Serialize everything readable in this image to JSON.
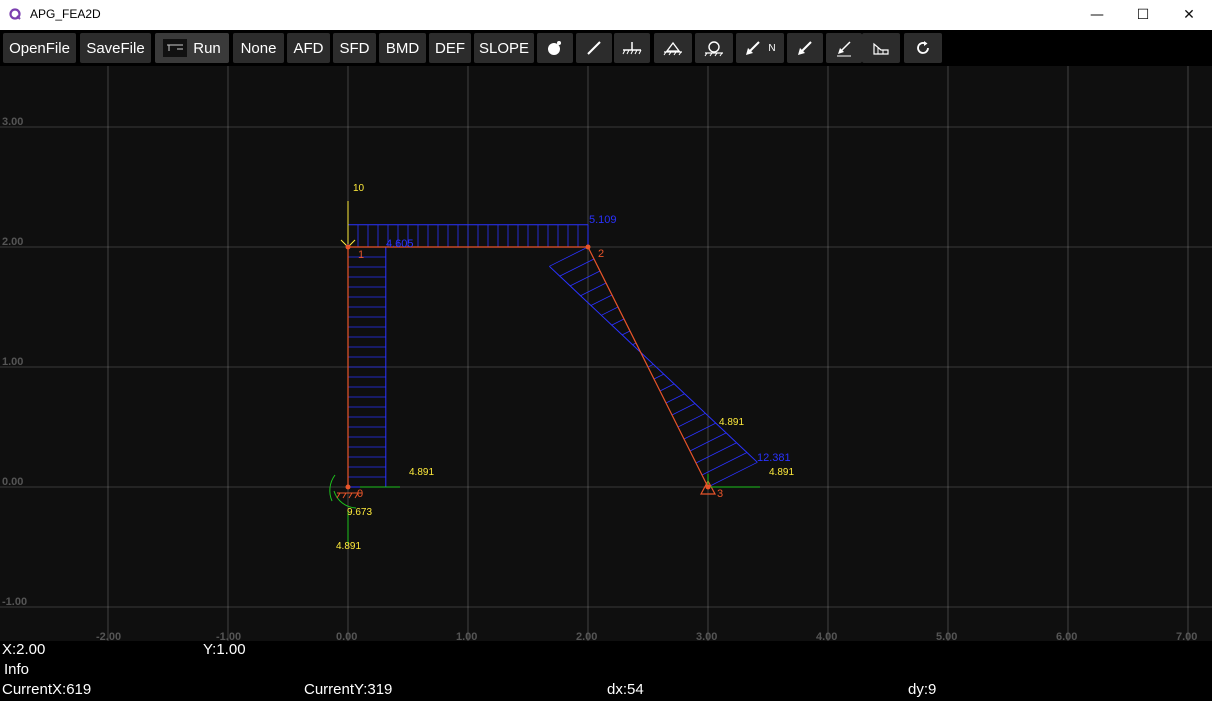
{
  "window": {
    "title": "APG_FEA2D",
    "minimize_glyph": "—",
    "maximize_glyph": "☐",
    "close_glyph": "✕"
  },
  "toolbar": {
    "open_label": "OpenFile",
    "save_label": "SaveFile",
    "run_label": "Run",
    "none_label": "None",
    "afd_label": "AFD",
    "sfd_label": "SFD",
    "bmd_label": "BMD",
    "def_label": "DEF",
    "slope_label": "SLOPE",
    "nodal_load_suffix": "N",
    "tools": [
      "node-tool-icon",
      "member-tool-icon",
      "fixed-support-icon",
      "pin-support-icon",
      "roller-support-icon",
      "nodal-force-icon",
      "member-load-icon",
      "distributed-load-icon",
      "trapezoid-load-icon",
      "rotate-icon"
    ]
  },
  "axes": {
    "x_ticks": [
      "-2.00",
      "-1.00",
      "0.00",
      "1.00",
      "2.00",
      "3.00",
      "4.00",
      "5.00",
      "6.00",
      "7.00"
    ],
    "y_ticks": [
      "3.00",
      "2.00",
      "1.00",
      "0.00",
      "-1.00"
    ]
  },
  "model": {
    "nodes": [
      {
        "id": "0",
        "x": 0,
        "y": 0
      },
      {
        "id": "1",
        "x": 0,
        "y": 2
      },
      {
        "id": "2",
        "x": 2,
        "y": 2
      },
      {
        "id": "3",
        "x": 3,
        "y": 0
      }
    ],
    "labels": {
      "load_10": "10",
      "top_left_value": "4.605",
      "top_right_value": "5.109",
      "base_reaction_h": "4.891",
      "base_moment": "9.673",
      "base_reaction_v": "4.891",
      "diag_mid_value": "4.891",
      "diag_end_value": "12.381",
      "node3_reaction": "4.891"
    }
  },
  "colors": {
    "member": "#e8552a",
    "diagram": "#2a32ff",
    "annotation": "#ffeb3b",
    "reaction": "#1ec21e",
    "grid": "#8a8a8a"
  },
  "status": {
    "x_readout": "X:2.00",
    "y_readout": "Y:1.00",
    "info": "Info",
    "current_x": "CurrentX:619",
    "current_y": "CurrentY:319",
    "dx": "dx:54",
    "dy": "dy:9"
  }
}
